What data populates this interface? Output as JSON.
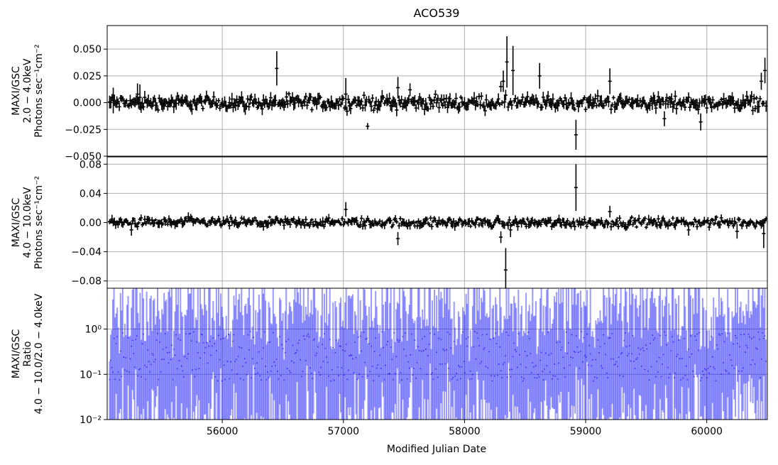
{
  "chart_data": {
    "title": "ACO539",
    "xlabel": "Modified Julian Date",
    "xlim": [
      55050,
      60500
    ],
    "xticks": [
      56000,
      57000,
      58000,
      59000,
      60000
    ],
    "xtick_labels": [
      "56000",
      "57000",
      "58000",
      "59000",
      "60000"
    ],
    "grid": true,
    "panels": [
      {
        "id": "soft",
        "type": "errorbar",
        "color": "#000000",
        "ylabel": [
          "MAXI/GSC",
          "2.0 − 4.0keV",
          "Photons sec⁻¹cm⁻²"
        ],
        "ylim": [
          -0.05,
          0.072
        ],
        "yticks": [
          -0.05,
          -0.025,
          0.0,
          0.025,
          0.05
        ],
        "ytick_labels": [
          "−0.050",
          "−0.025",
          "0.000",
          "0.025",
          "0.050"
        ],
        "baseline_noise": 0.003,
        "baseline_err": 0.004,
        "features": [
          [
            55100,
            0.002,
            0.012
          ],
          [
            55300,
            0.008,
            0.01
          ],
          [
            55320,
            0.005,
            0.012
          ],
          [
            56450,
            0.032,
            0.016
          ],
          [
            57020,
            0.008,
            0.015
          ],
          [
            57200,
            -0.022,
            0.003
          ],
          [
            57450,
            0.014,
            0.01
          ],
          [
            57550,
            0.012,
            0.006
          ],
          [
            58300,
            0.015,
            0.005
          ],
          [
            58320,
            0.02,
            0.01
          ],
          [
            58350,
            0.038,
            0.024
          ],
          [
            58400,
            0.03,
            0.023
          ],
          [
            58620,
            0.025,
            0.012
          ],
          [
            58920,
            -0.03,
            0.014
          ],
          [
            59200,
            0.02,
            0.012
          ],
          [
            59650,
            -0.015,
            0.007
          ],
          [
            59950,
            -0.018,
            0.008
          ],
          [
            60000,
            -0.005,
            0.005
          ],
          [
            60450,
            0.02,
            0.008
          ],
          [
            60480,
            0.03,
            0.012
          ]
        ]
      },
      {
        "id": "hard",
        "type": "errorbar",
        "color": "#000000",
        "ylabel": [
          "MAXI/GSC",
          "4.0 − 10.0keV",
          "Photons sec⁻¹cm⁻²"
        ],
        "ylim": [
          -0.09,
          0.09
        ],
        "yticks": [
          -0.08,
          -0.04,
          0.0,
          0.04,
          0.08
        ],
        "ytick_labels": [
          "−0.08",
          "−0.04",
          "0.00",
          "0.04",
          "0.08"
        ],
        "baseline_noise": 0.003,
        "baseline_err": 0.004,
        "features": [
          [
            55250,
            -0.01,
            0.008
          ],
          [
            55720,
            0.008,
            0.006
          ],
          [
            57020,
            0.018,
            0.01
          ],
          [
            57450,
            -0.022,
            0.009
          ],
          [
            58300,
            -0.02,
            0.008
          ],
          [
            58340,
            -0.065,
            0.03
          ],
          [
            58380,
            -0.01,
            0.01
          ],
          [
            58920,
            0.048,
            0.032
          ],
          [
            59200,
            0.015,
            0.008
          ],
          [
            59850,
            -0.01,
            0.008
          ],
          [
            60250,
            -0.012,
            0.01
          ],
          [
            60470,
            -0.015,
            0.02
          ]
        ]
      },
      {
        "id": "ratio",
        "type": "ratio",
        "color": "#0000ff",
        "ylabel": [
          "MAXI/GSC",
          "Ratio",
          "4.0 − 10.0/2.0 − 4.0keV"
        ],
        "yscale": "log",
        "ylim": [
          0.01,
          8.0
        ],
        "yticks": [
          0.01,
          0.1,
          1.0
        ],
        "ytick_labels": [
          "10⁻²",
          "10⁻¹",
          "10⁰"
        ]
      }
    ]
  }
}
